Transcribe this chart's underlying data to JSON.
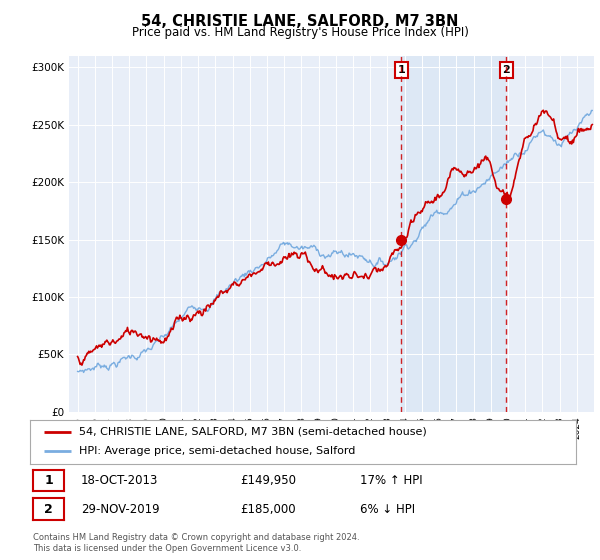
{
  "title": "54, CHRISTIE LANE, SALFORD, M7 3BN",
  "subtitle": "Price paid vs. HM Land Registry's House Price Index (HPI)",
  "property_label": "54, CHRISTIE LANE, SALFORD, M7 3BN (semi-detached house)",
  "hpi_label": "HPI: Average price, semi-detached house, Salford",
  "sale1_date": "18-OCT-2013",
  "sale1_price": "£149,950",
  "sale1_hpi": "17% ↑ HPI",
  "sale2_date": "29-NOV-2019",
  "sale2_price": "£185,000",
  "sale2_hpi": "6% ↓ HPI",
  "footer": "Contains HM Land Registry data © Crown copyright and database right 2024.\nThis data is licensed under the Open Government Licence v3.0.",
  "property_color": "#cc0000",
  "hpi_color": "#7aade0",
  "shade_color": "#dce8f5",
  "background_color": "#e8eef8",
  "sale1_x": 2013.8,
  "sale1_y": 149950,
  "sale2_x": 2019.9,
  "sale2_y": 185000,
  "ylim": [
    0,
    310000
  ],
  "xlim_start": 1994.5,
  "xlim_end": 2025.0
}
